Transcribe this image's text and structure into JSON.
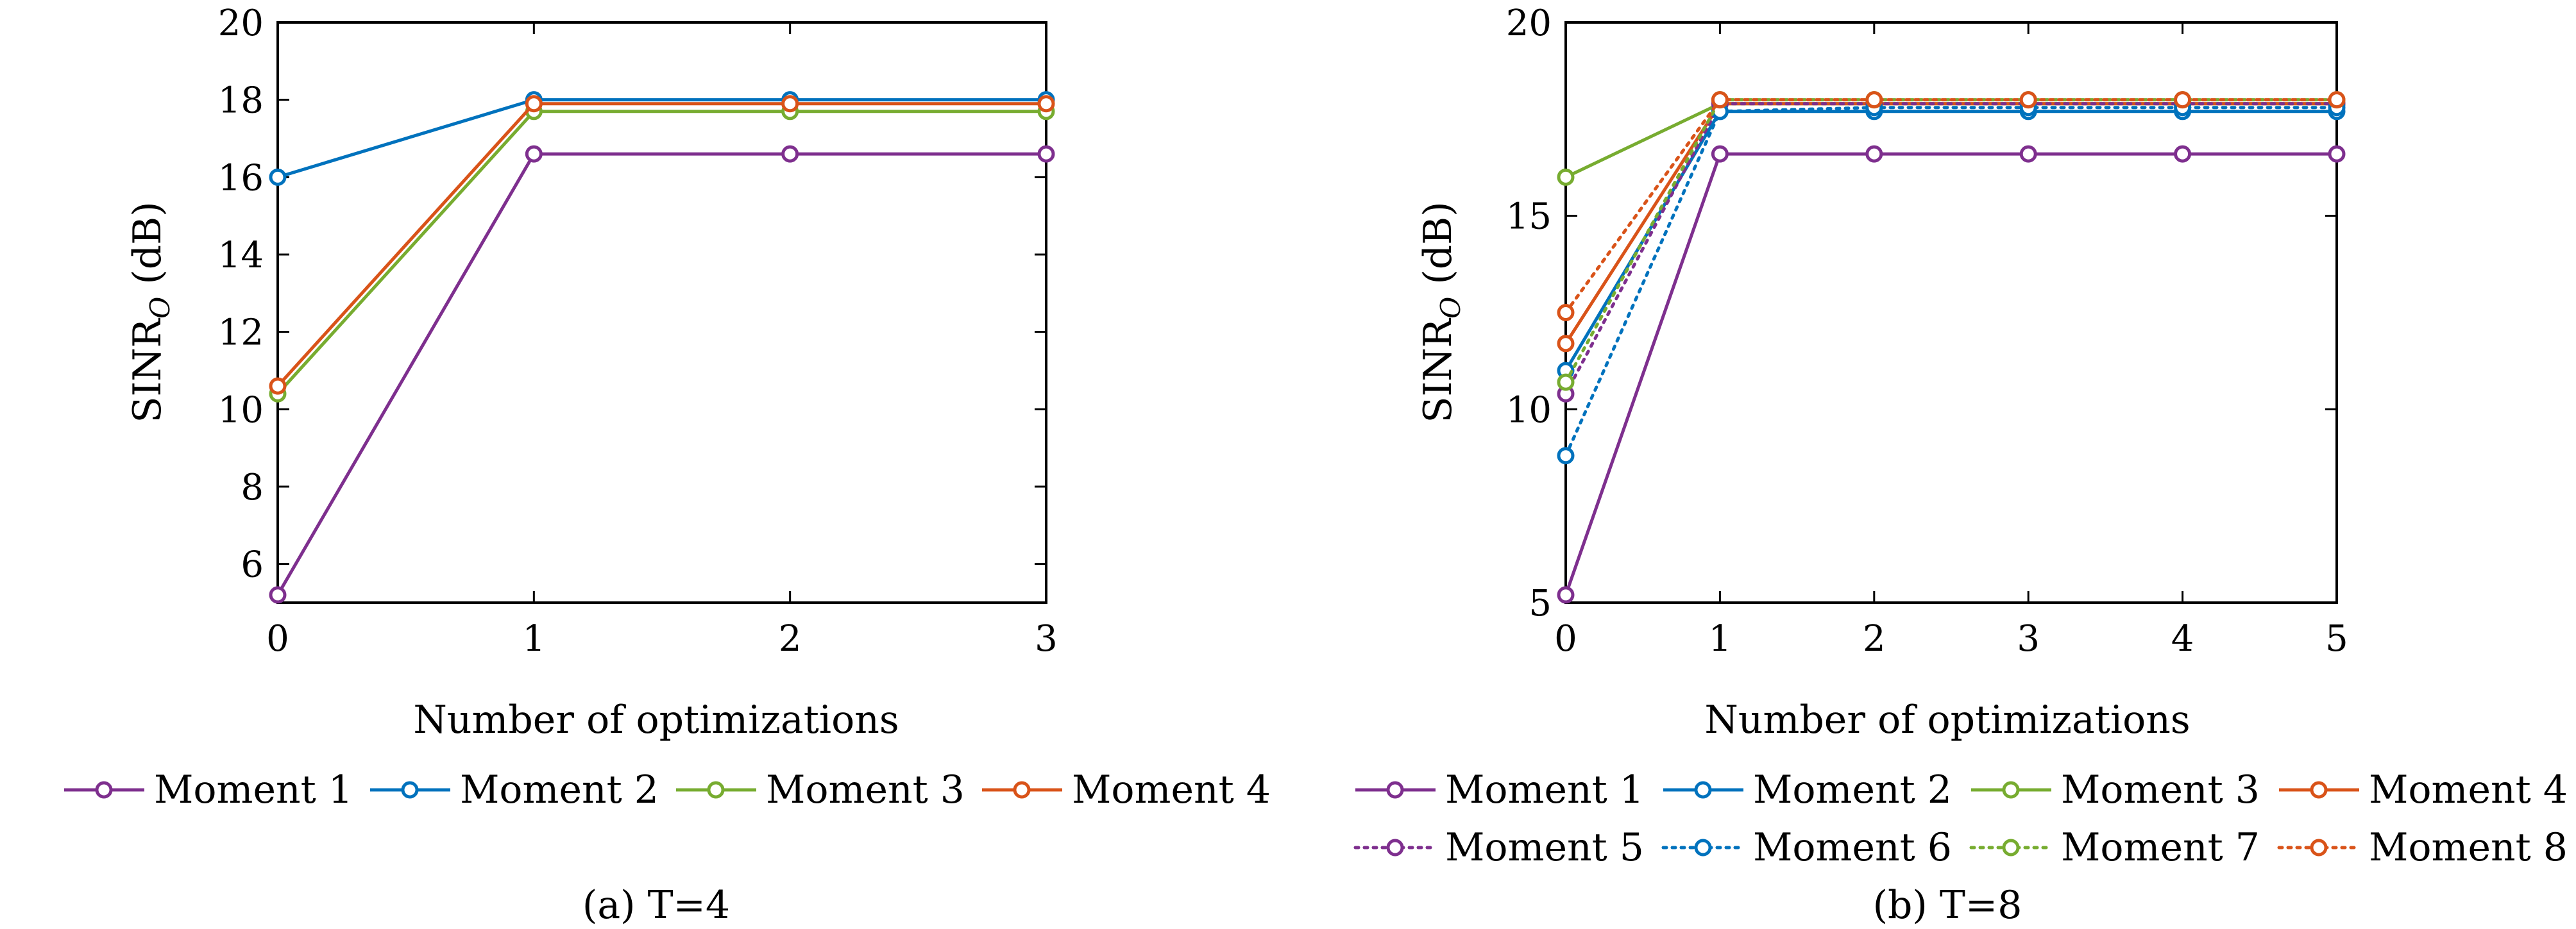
{
  "colors": {
    "purple": "#7E2F8E",
    "blue": "#0072BD",
    "green": "#77AC30",
    "orange": "#D95319",
    "axis": "#000000"
  },
  "chart_data": [
    {
      "type": "line",
      "caption": "(a)  T=4",
      "xlabel": "Number of optimizations",
      "ylabel": "SINR_O (dB)",
      "x": [
        0,
        1,
        2,
        3
      ],
      "xlim": [
        0,
        3
      ],
      "ylim": [
        5,
        20
      ],
      "xticks": [
        "0",
        "1",
        "2",
        "3"
      ],
      "yticks": [
        "6",
        "8",
        "10",
        "12",
        "14",
        "16",
        "18",
        "20"
      ],
      "series": [
        {
          "name": "Moment 1",
          "color": "purple",
          "style": "solid",
          "values": [
            5.2,
            16.6,
            16.6,
            16.6
          ]
        },
        {
          "name": "Moment 2",
          "color": "blue",
          "style": "solid",
          "values": [
            16.0,
            18.0,
            18.0,
            18.0
          ]
        },
        {
          "name": "Moment 3",
          "color": "green",
          "style": "solid",
          "values": [
            10.4,
            17.7,
            17.7,
            17.7
          ]
        },
        {
          "name": "Moment 4",
          "color": "orange",
          "style": "solid",
          "values": [
            10.6,
            17.9,
            17.9,
            17.9
          ]
        }
      ]
    },
    {
      "type": "line",
      "caption": "(b)  T=8",
      "xlabel": "Number of optimizations",
      "ylabel": "SINR_O (dB)",
      "x": [
        0,
        1,
        2,
        3,
        4,
        5
      ],
      "xlim": [
        0,
        5
      ],
      "ylim": [
        5,
        20
      ],
      "xticks": [
        "0",
        "1",
        "2",
        "3",
        "4",
        "5"
      ],
      "yticks": [
        "5",
        "10",
        "15",
        "20"
      ],
      "series": [
        {
          "name": "Moment 1",
          "color": "purple",
          "style": "solid",
          "values": [
            5.2,
            16.6,
            16.6,
            16.6,
            16.6,
            16.6
          ]
        },
        {
          "name": "Moment 2",
          "color": "blue",
          "style": "solid",
          "values": [
            11.0,
            17.7,
            17.7,
            17.7,
            17.7,
            17.7
          ]
        },
        {
          "name": "Moment 3",
          "color": "green",
          "style": "solid",
          "values": [
            16.0,
            17.9,
            17.9,
            17.9,
            17.9,
            17.9
          ]
        },
        {
          "name": "Moment 4",
          "color": "orange",
          "style": "solid",
          "values": [
            11.7,
            17.9,
            17.9,
            17.9,
            17.9,
            17.9
          ]
        },
        {
          "name": "Moment 5",
          "color": "purple",
          "style": "dotted",
          "values": [
            10.4,
            17.9,
            17.9,
            17.9,
            17.9,
            17.9
          ]
        },
        {
          "name": "Moment 6",
          "color": "blue",
          "style": "dotted",
          "values": [
            8.8,
            17.7,
            17.8,
            17.8,
            17.8,
            17.8
          ]
        },
        {
          "name": "Moment 7",
          "color": "green",
          "style": "dotted",
          "values": [
            10.7,
            18.0,
            18.0,
            18.0,
            18.0,
            18.0
          ]
        },
        {
          "name": "Moment 8",
          "color": "orange",
          "style": "dotted",
          "values": [
            12.5,
            18.0,
            18.0,
            18.0,
            18.0,
            18.0
          ]
        }
      ]
    }
  ]
}
